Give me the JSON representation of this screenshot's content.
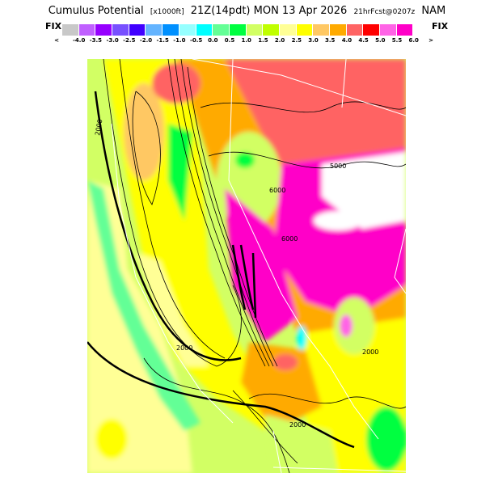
{
  "header": {
    "title": "Cumulus Potential",
    "units": "[x1000ft]",
    "valid_time": "21Z(14pdt) MON 13 Apr 2026",
    "forecast": "21hrFcst@0207z",
    "model": "NAM"
  },
  "colorbar": {
    "left_label": "FIX",
    "right_label": "FIX",
    "colors": [
      "#c8c8c8",
      "#c060ff",
      "#9600ff",
      "#7850ff",
      "#4000ff",
      "#64b4ff",
      "#0090ff",
      "#96ffff",
      "#00ffff",
      "#64ff96",
      "#00ff40",
      "#d2ff64",
      "#c0ff00",
      "#ffff96",
      "#ffff00",
      "#ffc864",
      "#ffaa00",
      "#ff6464",
      "#ff0000",
      "#ff64e6",
      "#ff00c8"
    ],
    "tick_labels": [
      "<",
      "-4.0",
      "-3.5",
      "-3.0",
      "-2.5",
      "-2.0",
      "-1.5",
      "-1.0",
      "-0.5",
      "0.0",
      "0.5",
      "1.0",
      "1.5",
      "2.0",
      "2.5",
      "3.0",
      "3.5",
      "4.0",
      "4.5",
      "5.0",
      "5.5",
      "6.0",
      ">"
    ]
  },
  "map": {
    "contour_labels": [
      "2000",
      "2000",
      "6000",
      "6000",
      "5000",
      "2000",
      "2000"
    ]
  }
}
